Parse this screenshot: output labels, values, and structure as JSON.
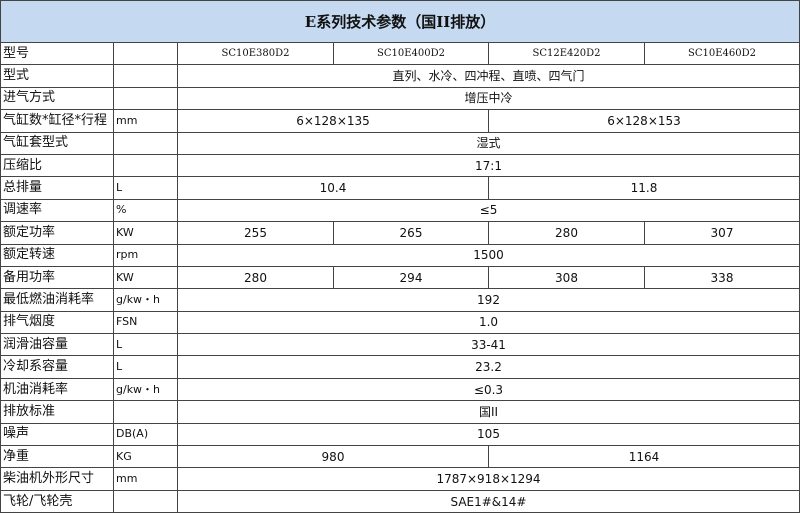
{
  "title": "E系列技术参数（国II排放）",
  "rows": [
    {
      "label": "型号",
      "unit": "",
      "cells": [
        {
          "v": "SC10E380D2",
          "span": 1
        },
        {
          "v": "SC10E400D2",
          "span": 1
        },
        {
          "v": "SC12E420D2",
          "span": 1
        },
        {
          "v": "SC10E460D2",
          "span": 1
        }
      ]
    },
    {
      "label": "型式",
      "unit": "",
      "cells": [
        {
          "v": "直列、水冷、四冲程、直喷、四气门",
          "span": 4
        }
      ]
    },
    {
      "label": "进气方式",
      "unit": "",
      "cells": [
        {
          "v": "增压中冷",
          "span": 4
        }
      ]
    },
    {
      "label": "气缸数*缸径*行程",
      "unit": "mm",
      "cells": [
        {
          "v": "6×128×135",
          "span": 2
        },
        {
          "v": "6×128×153",
          "span": 2
        }
      ]
    },
    {
      "label": "气缸套型式",
      "unit": "",
      "cells": [
        {
          "v": "湿式",
          "span": 4
        }
      ]
    },
    {
      "label": "压缩比",
      "unit": "",
      "cells": [
        {
          "v": "17:1",
          "span": 4
        }
      ]
    },
    {
      "label": "总排量",
      "unit": "L",
      "cells": [
        {
          "v": "10.4",
          "span": 2
        },
        {
          "v": "11.8",
          "span": 2
        }
      ]
    },
    {
      "label": "调速率",
      "unit": "%",
      "cells": [
        {
          "v": "≤5",
          "span": 4
        }
      ]
    },
    {
      "label": "额定功率",
      "unit": "KW",
      "cells": [
        {
          "v": "255",
          "span": 1
        },
        {
          "v": "265",
          "span": 1
        },
        {
          "v": "280",
          "span": 1
        },
        {
          "v": "307",
          "span": 1
        }
      ]
    },
    {
      "label": "额定转速",
      "unit": "rpm",
      "cells": [
        {
          "v": "1500",
          "span": 4
        }
      ]
    },
    {
      "label": "备用功率",
      "unit": "KW",
      "cells": [
        {
          "v": "280",
          "span": 1
        },
        {
          "v": "294",
          "span": 1
        },
        {
          "v": "308",
          "span": 1
        },
        {
          "v": "338",
          "span": 1
        }
      ]
    },
    {
      "label": "最低燃油消耗率",
      "unit": "g/kw・h",
      "cells": [
        {
          "v": "192",
          "span": 4
        }
      ]
    },
    {
      "label": "排气烟度",
      "unit": "FSN",
      "cells": [
        {
          "v": "1.0",
          "span": 4
        }
      ]
    },
    {
      "label": "润滑油容量",
      "unit": "L",
      "cells": [
        {
          "v": "33-41",
          "span": 4
        }
      ]
    },
    {
      "label": "冷却系容量",
      "unit": "L",
      "cells": [
        {
          "v": "23.2",
          "span": 4
        }
      ]
    },
    {
      "label": "机油消耗率",
      "unit": "g/kw・h",
      "cells": [
        {
          "v": "≤0.3",
          "span": 4
        }
      ]
    },
    {
      "label": "排放标准",
      "unit": "",
      "cells": [
        {
          "v": "国II",
          "span": 4
        }
      ]
    },
    {
      "label": "噪声",
      "unit": "DB(A)",
      "cells": [
        {
          "v": "105",
          "span": 4
        }
      ]
    },
    {
      "label": "净重",
      "unit": "KG",
      "cells": [
        {
          "v": "980",
          "span": 2
        },
        {
          "v": "1164",
          "span": 2
        }
      ]
    },
    {
      "label": "柴油机外形尺寸",
      "unit": "mm",
      "cells": [
        {
          "v": "1787×918×1294",
          "span": 4
        }
      ]
    },
    {
      "label": "飞轮/飞轮壳",
      "unit": "",
      "cells": [
        {
          "v": "SAE1#&14#",
          "span": 4
        }
      ]
    }
  ]
}
